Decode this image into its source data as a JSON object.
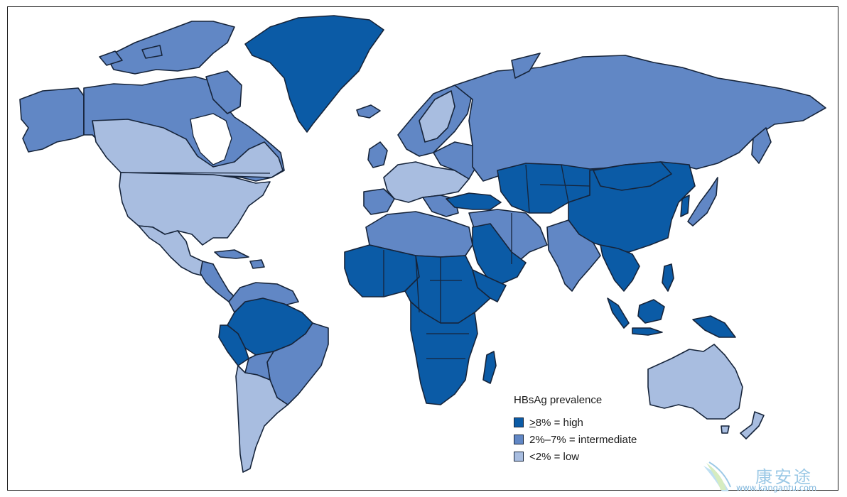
{
  "legend": {
    "title": "HBsAg prevalence",
    "items": [
      {
        "prefix": ">",
        "label": "8% = high",
        "level": "high",
        "color": "#0b5ba6"
      },
      {
        "prefix": "",
        "label": "2%–7% = intermediate",
        "level": "intermediate",
        "color": "#6187c5"
      },
      {
        "prefix": "",
        "label": "<2% = low",
        "level": "low",
        "color": "#a8bde0"
      }
    ]
  },
  "colors": {
    "high": "#0b5ba6",
    "intermediate": "#6187c5",
    "low": "#a8bde0",
    "border": "#16243a"
  },
  "watermark": {
    "chinese": "康安途",
    "url": "www.kangantu.com"
  }
}
